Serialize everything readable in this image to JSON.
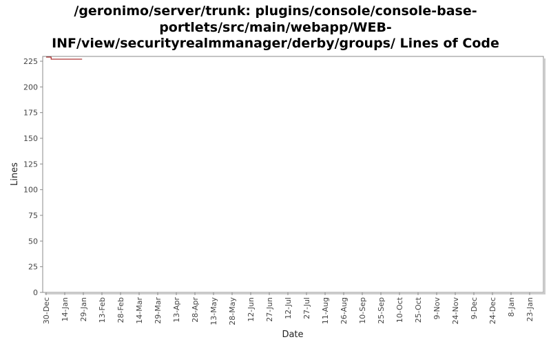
{
  "chart_data": {
    "type": "line",
    "title_lines": [
      "/geronimo/server/trunk: plugins/console/console-base-",
      "portlets/src/main/webapp/WEB-",
      "INF/view/securityrealmmanager/derby/groups/ Lines of Code"
    ],
    "xlabel": "Date",
    "ylabel": "Lines",
    "ylim": [
      0,
      230
    ],
    "y_ticks": [
      0,
      25,
      50,
      75,
      100,
      125,
      150,
      175,
      200,
      225
    ],
    "x_tick_labels": [
      "30-Dec",
      "14-Jan",
      "29-Jan",
      "13-Feb",
      "28-Feb",
      "14-Mar",
      "29-Mar",
      "13-Apr",
      "28-Apr",
      "13-May",
      "28-May",
      "12-Jun",
      "27-Jun",
      "12-Jul",
      "27-Jul",
      "11-Aug",
      "26-Aug",
      "10-Sep",
      "25-Sep",
      "10-Oct",
      "25-Oct",
      "9-Nov",
      "24-Nov",
      "9-Dec",
      "24-Dec",
      "8-Jan",
      "23-Jan"
    ],
    "series": [
      {
        "color": "#990000",
        "points": [
          {
            "x": "30-Dec",
            "y": 229
          },
          {
            "x": "1-Jan",
            "y": 229
          },
          {
            "x": "3-Jan",
            "y": 229
          },
          {
            "x": "3-Jan",
            "y": 227
          },
          {
            "x": "28-Jan",
            "y": 227
          }
        ]
      }
    ]
  }
}
